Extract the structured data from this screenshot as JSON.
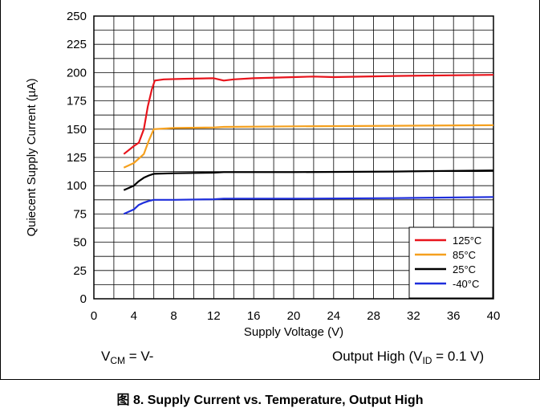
{
  "chart_data": {
    "type": "line",
    "title": "",
    "xlabel": "Supply Voltage (V)",
    "ylabel": "Quiecent Supply Current (µA)",
    "xlim": [
      0,
      40
    ],
    "ylim": [
      0,
      250
    ],
    "xticks": [
      "0",
      "4",
      "8",
      "12",
      "16",
      "20",
      "24",
      "28",
      "32",
      "36",
      "40"
    ],
    "yticks": [
      "0",
      "25",
      "50",
      "75",
      "100",
      "125",
      "150",
      "175",
      "200",
      "225",
      "250"
    ],
    "grid": true,
    "legend_position": "bottom-right",
    "series": [
      {
        "name": "125°C",
        "color": "#e8141c",
        "points": [
          [
            3,
            128
          ],
          [
            4,
            135
          ],
          [
            4.5,
            138
          ],
          [
            5,
            150
          ],
          [
            5.4,
            170
          ],
          [
            5.8,
            185
          ],
          [
            6.1,
            193
          ],
          [
            7,
            194
          ],
          [
            9,
            194.5
          ],
          [
            12,
            195
          ],
          [
            13,
            193
          ],
          [
            14,
            194
          ],
          [
            16,
            195
          ],
          [
            20,
            196
          ],
          [
            22,
            196.5
          ],
          [
            24,
            196
          ],
          [
            30,
            197
          ],
          [
            40,
            198
          ]
        ]
      },
      {
        "name": "85°C",
        "color": "#f5a01e",
        "points": [
          [
            3,
            116
          ],
          [
            4,
            120
          ],
          [
            5,
            128
          ],
          [
            5.5,
            140
          ],
          [
            6,
            150
          ],
          [
            8,
            151
          ],
          [
            12,
            151.5
          ],
          [
            13,
            152
          ],
          [
            20,
            152.5
          ],
          [
            30,
            153
          ],
          [
            40,
            153.5
          ]
        ]
      },
      {
        "name": "25°C",
        "color": "#000000",
        "points": [
          [
            3,
            96
          ],
          [
            4,
            100
          ],
          [
            4.5,
            104
          ],
          [
            5,
            107
          ],
          [
            5.5,
            109
          ],
          [
            6,
            110.5
          ],
          [
            8,
            111
          ],
          [
            12,
            111.5
          ],
          [
            13,
            112
          ],
          [
            20,
            112
          ],
          [
            30,
            112.5
          ],
          [
            40,
            113.5
          ]
        ]
      },
      {
        "name": "-40°C",
        "color": "#1e2edc",
        "points": [
          [
            3,
            75
          ],
          [
            4,
            79
          ],
          [
            4.5,
            83
          ],
          [
            5,
            85
          ],
          [
            5.5,
            86.5
          ],
          [
            6,
            87.5
          ],
          [
            8,
            87.5
          ],
          [
            12,
            88
          ],
          [
            13,
            88.5
          ],
          [
            20,
            88.5
          ],
          [
            30,
            89
          ],
          [
            40,
            90
          ]
        ]
      }
    ]
  },
  "conditions": {
    "left_prefix": "V",
    "left_sub": "CM",
    "left_suffix": " = V-",
    "right_prefix": "Output High (V",
    "right_sub": "ID",
    "right_suffix": " = 0.1 V)"
  },
  "caption": "图 8. Supply Current vs. Temperature, Output High"
}
